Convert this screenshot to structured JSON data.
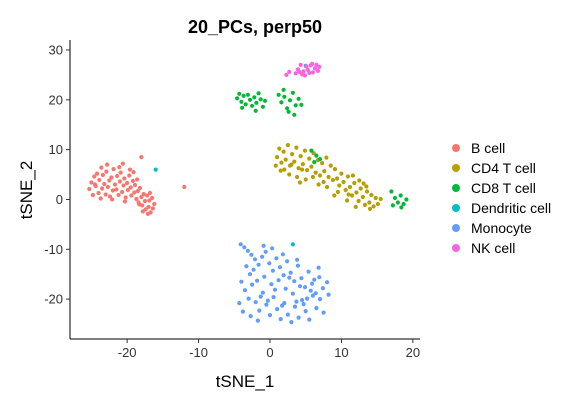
{
  "chart_data": {
    "type": "scatter",
    "title": "20_PCs, perp50",
    "xlabel": "tSNE_1",
    "ylabel": "tSNE_2",
    "xlim": [
      -28,
      21
    ],
    "ylim": [
      -28,
      32
    ],
    "xticks": [
      -20,
      -10,
      0,
      10,
      20
    ],
    "yticks": [
      -20,
      -10,
      0,
      10,
      20,
      30
    ],
    "grid": false,
    "legend_position": "right",
    "series": [
      {
        "name": "B cell",
        "color": "#F8766D",
        "points": [
          [
            -25.3,
            2.1
          ],
          [
            -25.0,
            3.4
          ],
          [
            -24.8,
            0.9
          ],
          [
            -24.6,
            4.6
          ],
          [
            -24.4,
            2.7
          ],
          [
            -24.2,
            5.2
          ],
          [
            -24.0,
            1.3
          ],
          [
            -23.9,
            3.9
          ],
          [
            -23.7,
            0.2
          ],
          [
            -23.5,
            2.2
          ],
          [
            -23.4,
            4.9
          ],
          [
            -23.2,
            3.1
          ],
          [
            -23.0,
            1.0
          ],
          [
            -22.9,
            5.6
          ],
          [
            -22.7,
            2.5
          ],
          [
            -22.5,
            3.8
          ],
          [
            -22.4,
            0.6
          ],
          [
            -22.2,
            4.4
          ],
          [
            -22.0,
            1.8
          ],
          [
            -21.9,
            6.1
          ],
          [
            -21.7,
            3.0
          ],
          [
            -21.5,
            2.0
          ],
          [
            -21.4,
            4.7
          ],
          [
            -21.2,
            0.9
          ],
          [
            -21.0,
            3.6
          ],
          [
            -20.9,
            5.4
          ],
          [
            -20.7,
            1.5
          ],
          [
            -20.5,
            2.8
          ],
          [
            -20.4,
            4.2
          ],
          [
            -20.2,
            0.4
          ],
          [
            -20.0,
            3.3
          ],
          [
            -19.9,
            1.9
          ],
          [
            -19.7,
            4.8
          ],
          [
            -19.5,
            2.4
          ],
          [
            -19.4,
            0.8
          ],
          [
            -19.2,
            3.7
          ],
          [
            -19.0,
            1.4
          ],
          [
            -18.9,
            2.9
          ],
          [
            -18.7,
            0.1
          ],
          [
            -18.5,
            1.7
          ],
          [
            -18.4,
            -0.6
          ],
          [
            -18.2,
            2.3
          ],
          [
            -18.0,
            0.5
          ],
          [
            -17.9,
            -1.2
          ],
          [
            -17.7,
            1.1
          ],
          [
            -17.5,
            -0.3
          ],
          [
            -17.4,
            -2.0
          ],
          [
            -17.2,
            0.8
          ],
          [
            -17.0,
            -1.5
          ],
          [
            -16.9,
            -0.2
          ],
          [
            -16.7,
            -2.6
          ],
          [
            -16.5,
            0.3
          ],
          [
            -16.4,
            -1.8
          ],
          [
            -16.2,
            -0.9
          ],
          [
            -17.8,
            -2.4
          ],
          [
            -17.1,
            -2.9
          ],
          [
            -22.8,
            7.0
          ],
          [
            -21.1,
            6.5
          ],
          [
            -19.6,
            6.0
          ],
          [
            -18.6,
            4.0
          ],
          [
            -20.6,
            7.2
          ],
          [
            -23.6,
            6.4
          ],
          [
            -24.5,
            3.0
          ],
          [
            -22.1,
            0.0
          ],
          [
            -20.3,
            -0.4
          ],
          [
            -18.3,
            -1.0
          ],
          [
            -16.8,
            1.3
          ],
          [
            -19.1,
            5.5
          ],
          [
            -18.0,
            8.5
          ],
          [
            -12.0,
            2.5
          ]
        ]
      },
      {
        "name": "CD4 T cell",
        "color": "#B79F00",
        "points": [
          [
            1.0,
            8.5
          ],
          [
            1.3,
            10.2
          ],
          [
            1.6,
            7.4
          ],
          [
            1.9,
            9.6
          ],
          [
            2.2,
            8.0
          ],
          [
            2.5,
            10.9
          ],
          [
            2.8,
            6.8
          ],
          [
            3.1,
            9.1
          ],
          [
            3.4,
            7.6
          ],
          [
            3.7,
            10.4
          ],
          [
            4.0,
            6.3
          ],
          [
            4.3,
            8.7
          ],
          [
            4.6,
            7.1
          ],
          [
            4.9,
            9.8
          ],
          [
            5.2,
            5.9
          ],
          [
            5.5,
            8.2
          ],
          [
            5.8,
            6.6
          ],
          [
            6.1,
            9.3
          ],
          [
            6.4,
            5.4
          ],
          [
            6.7,
            7.9
          ],
          [
            7.0,
            4.8
          ],
          [
            7.3,
            7.3
          ],
          [
            7.6,
            5.7
          ],
          [
            7.9,
            8.4
          ],
          [
            8.2,
            4.5
          ],
          [
            8.5,
            6.8
          ],
          [
            8.8,
            3.9
          ],
          [
            9.1,
            6.1
          ],
          [
            9.4,
            4.2
          ],
          [
            9.7,
            2.8
          ],
          [
            10.0,
            5.2
          ],
          [
            10.3,
            3.5
          ],
          [
            10.6,
            1.9
          ],
          [
            10.9,
            4.6
          ],
          [
            11.2,
            2.5
          ],
          [
            11.5,
            0.8
          ],
          [
            11.8,
            3.3
          ],
          [
            12.1,
            1.4
          ],
          [
            12.4,
            -0.3
          ],
          [
            12.7,
            2.2
          ],
          [
            13.0,
            0.5
          ],
          [
            13.3,
            -1.1
          ],
          [
            13.6,
            1.6
          ],
          [
            13.9,
            -0.6
          ],
          [
            14.2,
            0.9
          ],
          [
            14.5,
            -1.4
          ],
          [
            14.8,
            0.3
          ],
          [
            15.1,
            -0.9
          ],
          [
            3.0,
            7.0
          ],
          [
            4.5,
            6.0
          ],
          [
            6.0,
            4.5
          ],
          [
            2.0,
            6.0
          ],
          [
            5.0,
            4.0
          ],
          [
            7.5,
            3.5
          ],
          [
            11.0,
            1.0
          ],
          [
            12.5,
            3.8
          ],
          [
            9.5,
            1.5
          ],
          [
            13.5,
            2.6
          ],
          [
            8.0,
            2.5
          ],
          [
            3.8,
            4.5
          ],
          [
            6.8,
            3.0
          ],
          [
            2.7,
            5.0
          ],
          [
            10.8,
            -0.2
          ],
          [
            14.0,
            -1.9
          ],
          [
            12.0,
            -1.5
          ],
          [
            1.5,
            5.8
          ],
          [
            0.8,
            6.8
          ],
          [
            4.2,
            3.4
          ],
          [
            9.0,
            0.8
          ],
          [
            15.5,
            0.1
          ],
          [
            11.6,
            4.8
          ],
          [
            13.1,
            3.2
          ]
        ]
      },
      {
        "name": "CD8 T cell",
        "color": "#00BA38",
        "points": [
          [
            -4.6,
            20.3
          ],
          [
            -4.3,
            21.2
          ],
          [
            -4.0,
            19.6
          ],
          [
            -3.7,
            20.8
          ],
          [
            -3.4,
            19.1
          ],
          [
            -3.1,
            21.0
          ],
          [
            -2.8,
            20.0
          ],
          [
            -2.5,
            18.8
          ],
          [
            -2.2,
            20.5
          ],
          [
            -1.9,
            19.4
          ],
          [
            -1.6,
            21.3
          ],
          [
            -1.3,
            20.1
          ],
          [
            -1.0,
            18.6
          ],
          [
            -0.7,
            19.8
          ],
          [
            -3.9,
            18.4
          ],
          [
            -2.0,
            17.8
          ],
          [
            1.2,
            21.0
          ],
          [
            1.6,
            19.5
          ],
          [
            2.0,
            20.6
          ],
          [
            2.4,
            18.3
          ],
          [
            2.8,
            19.9
          ],
          [
            3.2,
            21.4
          ],
          [
            3.6,
            18.9
          ],
          [
            4.0,
            20.2
          ],
          [
            4.4,
            19.0
          ],
          [
            2.6,
            17.6
          ],
          [
            3.4,
            17.0
          ],
          [
            1.9,
            22.0
          ],
          [
            17.5,
            0.3
          ],
          [
            17.9,
            -0.6
          ],
          [
            18.3,
            0.8
          ],
          [
            18.7,
            -0.9
          ],
          [
            19.1,
            0.0
          ],
          [
            17.2,
            -1.2
          ],
          [
            17.0,
            1.6
          ],
          [
            18.4,
            -1.6
          ],
          [
            6.5,
            8.8
          ],
          [
            7.0,
            8.1
          ],
          [
            5.8,
            9.8
          ],
          [
            6.2,
            7.5
          ]
        ]
      },
      {
        "name": "Dendritic cell",
        "color": "#00BFC4",
        "points": [
          [
            -16.0,
            6.0
          ],
          [
            3.2,
            -9.0
          ],
          [
            5.0,
            26.8
          ]
        ]
      },
      {
        "name": "Monocyte",
        "color": "#619CFF",
        "points": [
          [
            -4.1,
            -9.0
          ],
          [
            -3.6,
            -9.6
          ],
          [
            -3.1,
            -10.3
          ],
          [
            -2.6,
            -11.1
          ],
          [
            -2.1,
            -12.0
          ],
          [
            -1.6,
            -13.1
          ],
          [
            -1.1,
            -11.5
          ],
          [
            -0.6,
            -10.5
          ],
          [
            -0.1,
            -12.8
          ],
          [
            0.4,
            -14.3
          ],
          [
            0.9,
            -11.8
          ],
          [
            1.4,
            -13.6
          ],
          [
            1.9,
            -15.2
          ],
          [
            2.4,
            -12.4
          ],
          [
            2.9,
            -14.7
          ],
          [
            3.4,
            -16.4
          ],
          [
            3.9,
            -13.3
          ],
          [
            4.4,
            -15.8
          ],
          [
            4.9,
            -17.6
          ],
          [
            5.4,
            -14.5
          ],
          [
            5.9,
            -16.9
          ],
          [
            6.4,
            -18.8
          ],
          [
            6.9,
            -15.6
          ],
          [
            7.4,
            -17.8
          ],
          [
            -4.0,
            -16.5
          ],
          [
            -3.5,
            -18.2
          ],
          [
            -3.0,
            -19.9
          ],
          [
            -2.5,
            -17.1
          ],
          [
            -2.0,
            -20.6
          ],
          [
            -1.5,
            -22.3
          ],
          [
            -1.0,
            -18.7
          ],
          [
            -0.5,
            -21.1
          ],
          [
            0.0,
            -23.2
          ],
          [
            0.5,
            -19.6
          ],
          [
            1.0,
            -22.0
          ],
          [
            1.5,
            -24.0
          ],
          [
            2.0,
            -20.8
          ],
          [
            2.5,
            -23.1
          ],
          [
            3.0,
            -24.6
          ],
          [
            3.5,
            -21.5
          ],
          [
            4.0,
            -23.7
          ],
          [
            4.5,
            -20.2
          ],
          [
            5.0,
            -22.4
          ],
          [
            5.5,
            -24.1
          ],
          [
            6.0,
            -19.3
          ],
          [
            6.5,
            -21.8
          ],
          [
            7.0,
            -20.0
          ],
          [
            7.5,
            -22.7
          ],
          [
            -2.8,
            -15.0
          ],
          [
            -1.8,
            -16.3
          ],
          [
            -0.8,
            -15.5
          ],
          [
            0.2,
            -17.0
          ],
          [
            1.2,
            -16.2
          ],
          [
            2.2,
            -17.9
          ],
          [
            3.2,
            -18.9
          ],
          [
            4.2,
            -17.4
          ],
          [
            5.2,
            -19.9
          ],
          [
            6.2,
            -16.1
          ],
          [
            -3.3,
            -13.4
          ],
          [
            -2.3,
            -14.1
          ],
          [
            -1.3,
            -19.5
          ],
          [
            -0.3,
            -20.3
          ],
          [
            0.7,
            -18.1
          ],
          [
            1.7,
            -21.3
          ],
          [
            2.7,
            -15.7
          ],
          [
            3.7,
            -20.5
          ],
          [
            4.7,
            -21.0
          ],
          [
            5.7,
            -18.3
          ],
          [
            -4.3,
            -20.8
          ],
          [
            -3.8,
            -22.5
          ],
          [
            -2.7,
            -23.4
          ],
          [
            -1.7,
            -24.3
          ],
          [
            1.8,
            -11.0
          ],
          [
            0.3,
            -9.8
          ],
          [
            -0.9,
            -9.3
          ],
          [
            3.8,
            -12.1
          ],
          [
            6.8,
            -13.7
          ],
          [
            8.0,
            -16.6
          ],
          [
            8.2,
            -19.1
          ]
        ]
      },
      {
        "name": "NK cell",
        "color": "#F564E3",
        "points": [
          [
            3.9,
            26.1
          ],
          [
            4.3,
            27.0
          ],
          [
            4.7,
            25.7
          ],
          [
            5.1,
            26.7
          ],
          [
            5.5,
            25.4
          ],
          [
            5.9,
            27.2
          ],
          [
            6.3,
            26.3
          ],
          [
            6.7,
            25.8
          ],
          [
            4.5,
            25.1
          ],
          [
            5.3,
            26.0
          ],
          [
            6.0,
            25.5
          ],
          [
            4.1,
            25.6
          ],
          [
            5.7,
            26.9
          ],
          [
            6.5,
            27.0
          ],
          [
            3.6,
            25.3
          ],
          [
            2.7,
            25.6
          ],
          [
            2.3,
            25.0
          ],
          [
            4.9,
            24.9
          ],
          [
            6.9,
            26.6
          ]
        ]
      }
    ]
  }
}
